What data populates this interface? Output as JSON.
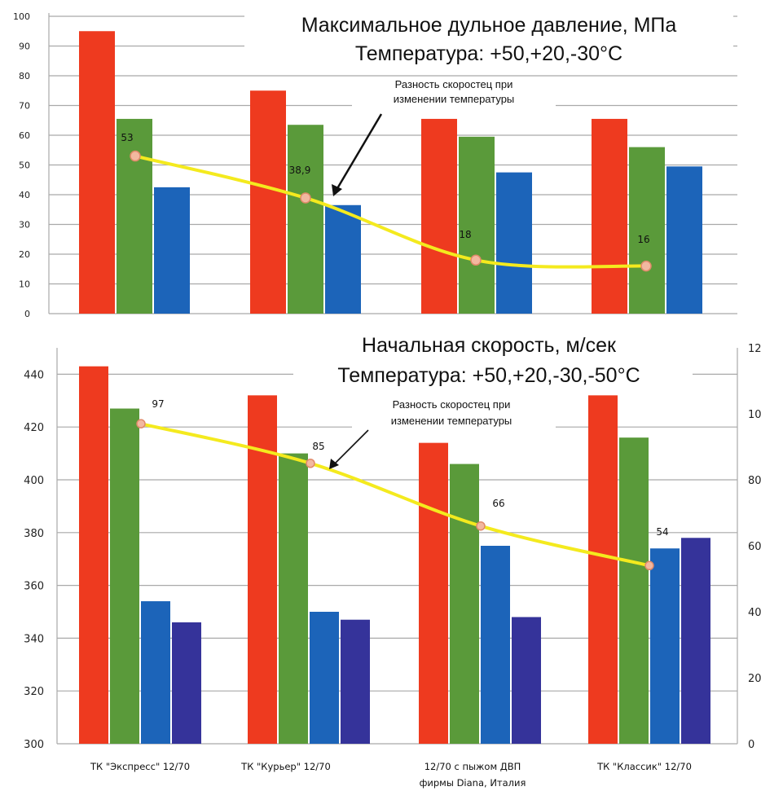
{
  "chart_data": [
    {
      "type": "bar",
      "title": "Максимальное дульное давление, МПа",
      "subtitle": "Температура: +50,+20,-30°C",
      "categories": [
        "ТК \"Экспресс\" 12/70",
        "ТК \"Курьер\" 12/70",
        "12/70 с пыжом ДВП фирмы Diana, Италия",
        "ТК \"Классик\" 12/70"
      ],
      "ylim": [
        0,
        100
      ],
      "yticks": [
        "0",
        "10",
        "20",
        "30",
        "40",
        "50",
        "60",
        "70",
        "80",
        "90",
        "100"
      ],
      "grid": true,
      "series": [
        {
          "values": [
            95,
            75,
            65.5,
            65.5
          ],
          "color": "#ee3a1f"
        },
        {
          "values": [
            65.5,
            63.5,
            59.5,
            56
          ],
          "color": "#5a9a3a"
        },
        {
          "values": [
            42.5,
            36.5,
            47.5,
            49.5
          ],
          "color": "#1c64b9"
        }
      ],
      "line": {
        "values": [
          53,
          38.9,
          18,
          16
        ],
        "labels": [
          "53",
          "38,9",
          "18",
          "16"
        ],
        "color": "#f4ea1e"
      },
      "annotation": "Разность скоростец при изменении температуры"
    },
    {
      "type": "bar",
      "title": "Начальная скорость, м/сек",
      "subtitle": "Температура: +50,+20,-30,-50°C",
      "categories": [
        "ТК \"Экспресс\" 12/70",
        "ТК \"Курьер\" 12/70",
        "12/70 с пыжом ДВП фирмы Diana, Италия",
        "ТК \"Классик\" 12/70"
      ],
      "ylim": [
        300,
        450
      ],
      "yticks": [
        "300",
        "320",
        "340",
        "360",
        "380",
        "400",
        "420",
        "440"
      ],
      "y2lim": [
        0,
        120
      ],
      "y2ticks": [
        "0",
        "20",
        "40",
        "60",
        "80",
        "100",
        "120"
      ],
      "grid": true,
      "series": [
        {
          "values": [
            443,
            432,
            414,
            432
          ],
          "color": "#ee3a1f"
        },
        {
          "values": [
            427,
            410,
            406,
            416
          ],
          "color": "#5a9a3a"
        },
        {
          "values": [
            354,
            350,
            375,
            374
          ],
          "color": "#1c64b9"
        },
        {
          "values": [
            346,
            347,
            348,
            378
          ],
          "color": "#35339a"
        }
      ],
      "line": {
        "values": [
          97,
          85,
          66,
          54
        ],
        "labels": [
          "97",
          "85",
          "66",
          "54"
        ],
        "color": "#f4ea1e",
        "axis": "right"
      },
      "annotation": "Разность скоростец при изменении температуры"
    }
  ]
}
